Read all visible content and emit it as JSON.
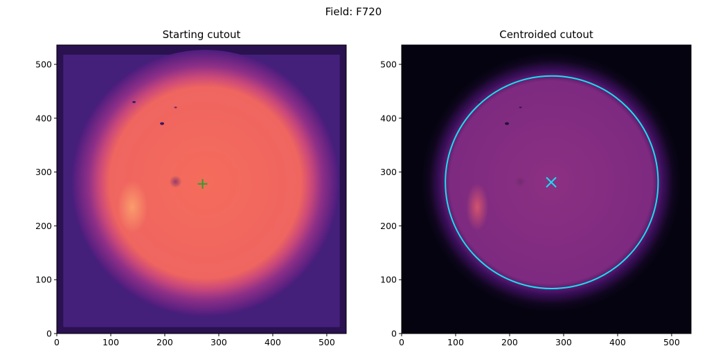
{
  "figure": {
    "suptitle": "Field: F720"
  },
  "chart_data": [
    {
      "type": "heatmap",
      "title": "Starting cutout",
      "colormap": "magma",
      "xlim": [
        0,
        536
      ],
      "ylim": [
        0,
        536
      ],
      "xticks": [
        0,
        100,
        200,
        300,
        400,
        500
      ],
      "yticks": [
        0,
        100,
        200,
        300,
        400,
        500
      ],
      "image": {
        "bright_disk_center": [
          275,
          280
        ],
        "bright_disk_radius": 220,
        "dark_border_margin": 12
      },
      "markers": [
        {
          "shape": "+",
          "x": 270,
          "y": 278,
          "color": "#2ca02c"
        }
      ]
    },
    {
      "type": "heatmap",
      "title": "Centroided cutout",
      "colormap": "magma",
      "xlim": [
        0,
        536
      ],
      "ylim": [
        0,
        536
      ],
      "xticks": [
        0,
        100,
        200,
        300,
        400,
        500
      ],
      "yticks": [
        0,
        100,
        200,
        300,
        400,
        500
      ],
      "image": {
        "disk_center": [
          277,
          281
        ],
        "disk_radius": 197
      },
      "markers": [
        {
          "shape": "x",
          "x": 277,
          "y": 281,
          "color": "#17e0f5"
        }
      ],
      "circle": {
        "x": 278,
        "y": 281,
        "radius": 197,
        "color": "#17e0f5"
      }
    }
  ]
}
